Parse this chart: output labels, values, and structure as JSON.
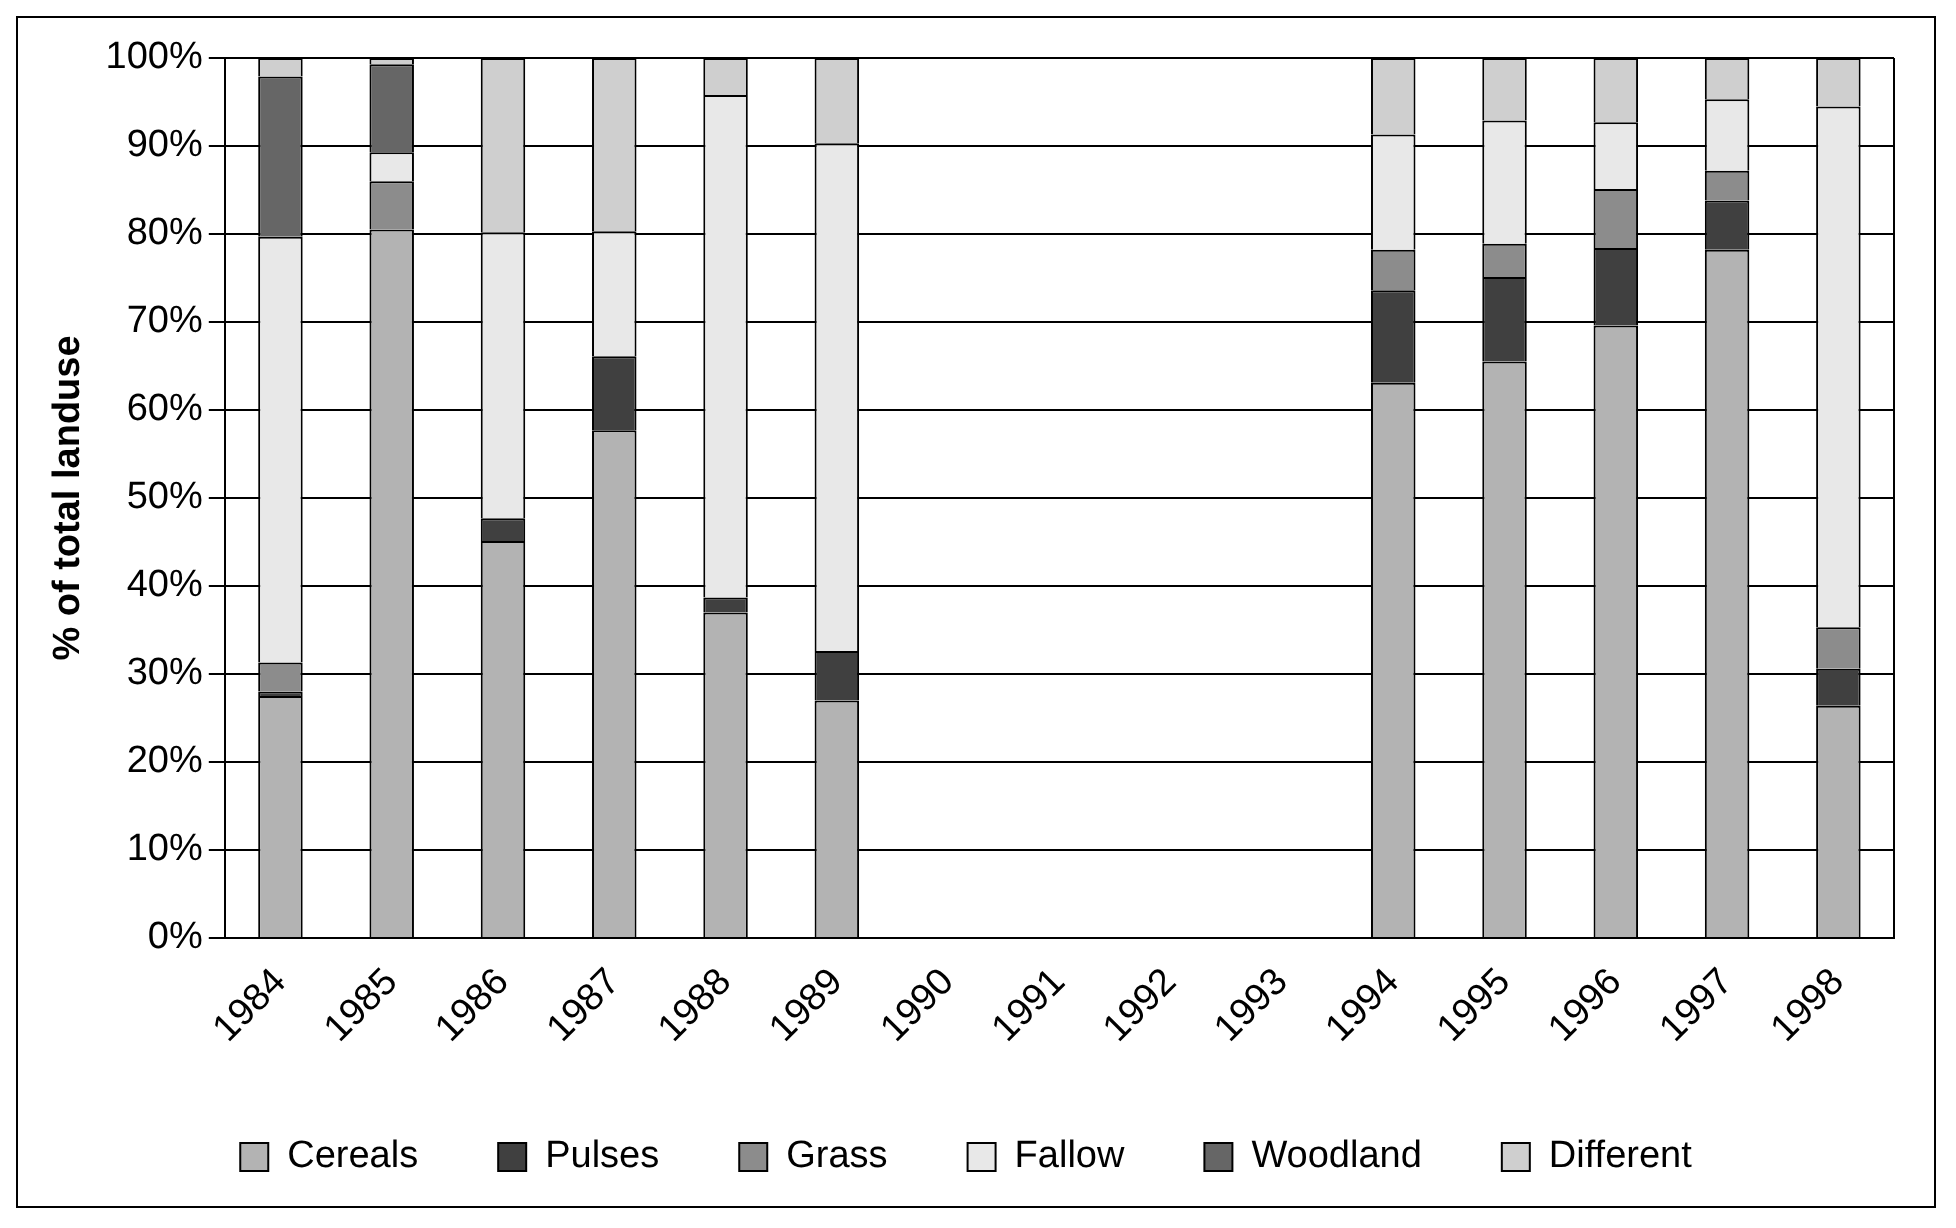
{
  "chart_data": {
    "type": "bar",
    "stacked": true,
    "ylabel": "% of total landuse",
    "categories": [
      "1984",
      "1985",
      "1986",
      "1987",
      "1988",
      "1989",
      "1990",
      "1991",
      "1992",
      "1993",
      "1994",
      "1995",
      "1996",
      "1997",
      "1998"
    ],
    "series": [
      {
        "name": "Cereals",
        "color": "#b3b3b3",
        "values": [
          27.5,
          80.5,
          45.1,
          57.7,
          37.0,
          27.0,
          null,
          null,
          null,
          null,
          63.1,
          65.5,
          69.6,
          78.2,
          26.4
        ]
      },
      {
        "name": "Pulses",
        "color": "#404040",
        "values": [
          0.5,
          null,
          2.6,
          8.4,
          1.7,
          5.6,
          null,
          null,
          null,
          null,
          10.5,
          9.6,
          8.8,
          5.6,
          4.2
        ]
      },
      {
        "name": "Grass",
        "color": "#8c8c8c",
        "values": [
          3.3,
          5.5,
          null,
          null,
          null,
          null,
          null,
          null,
          null,
          null,
          4.6,
          3.8,
          6.7,
          3.4,
          4.7
        ]
      },
      {
        "name": "Fallow",
        "color": "#e8e8e8",
        "values": [
          48.4,
          3.3,
          32.5,
          14.2,
          57.1,
          57.7,
          null,
          null,
          null,
          null,
          13.1,
          14.0,
          7.6,
          8.1,
          59.2
        ]
      },
      {
        "name": "Woodland",
        "color": "#666666",
        "values": [
          18.2,
          10.0,
          null,
          null,
          null,
          null,
          null,
          null,
          null,
          null,
          null,
          null,
          null,
          null,
          null
        ]
      },
      {
        "name": "Different",
        "color": "#cfcfcf",
        "values": [
          2.1,
          0.7,
          19.8,
          19.7,
          4.2,
          9.7,
          null,
          null,
          null,
          null,
          8.7,
          7.1,
          7.3,
          4.7,
          5.5
        ]
      }
    ],
    "ylim": [
      0,
      100
    ],
    "yticks": [
      {
        "value": 0,
        "label": "0%"
      },
      {
        "value": 10,
        "label": "10%"
      },
      {
        "value": 20,
        "label": "20%"
      },
      {
        "value": 30,
        "label": "30%"
      },
      {
        "value": 40,
        "label": "40%"
      },
      {
        "value": 50,
        "label": "50%"
      },
      {
        "value": 60,
        "label": "60%"
      },
      {
        "value": 70,
        "label": "70%"
      },
      {
        "value": 80,
        "label": "80%"
      },
      {
        "value": 90,
        "label": "90%"
      },
      {
        "value": 100,
        "label": "100%"
      }
    ],
    "grid": "y",
    "legend": "bottom"
  }
}
